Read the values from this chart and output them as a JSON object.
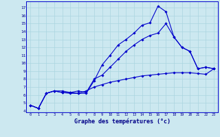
{
  "line1": {
    "x": [
      0,
      1,
      2,
      3,
      4,
      5,
      6,
      7,
      8,
      9,
      10,
      11,
      12,
      13,
      14,
      15,
      16,
      17,
      18,
      19,
      20,
      21,
      22,
      23
    ],
    "y": [
      4.7,
      4.3,
      6.2,
      6.5,
      6.3,
      6.2,
      6.2,
      6.2,
      7.8,
      9.8,
      11.0,
      12.3,
      13.0,
      13.8,
      14.8,
      15.1,
      17.2,
      16.5,
      13.3,
      12.0,
      11.5,
      9.3,
      9.5,
      9.3
    ]
  },
  "line2": {
    "x": [
      0,
      1,
      2,
      3,
      4,
      5,
      6,
      7,
      8,
      9,
      10,
      11,
      12,
      13,
      14,
      15,
      16,
      17,
      18,
      19,
      20,
      21,
      22,
      23
    ],
    "y": [
      4.7,
      4.3,
      6.2,
      6.5,
      6.5,
      6.3,
      6.5,
      6.3,
      8.0,
      8.5,
      9.5,
      10.5,
      11.5,
      12.3,
      13.0,
      13.5,
      13.8,
      15.0,
      13.3,
      12.0,
      11.5,
      9.3,
      9.5,
      9.3
    ]
  },
  "line3": {
    "x": [
      0,
      1,
      2,
      3,
      4,
      5,
      6,
      7,
      8,
      9,
      10,
      11,
      12,
      13,
      14,
      15,
      16,
      17,
      18,
      19,
      20,
      21,
      22,
      23
    ],
    "y": [
      4.7,
      4.3,
      6.2,
      6.5,
      6.3,
      6.3,
      6.2,
      6.5,
      7.0,
      7.3,
      7.6,
      7.8,
      8.0,
      8.2,
      8.4,
      8.5,
      8.6,
      8.7,
      8.8,
      8.8,
      8.8,
      8.7,
      8.6,
      9.3
    ]
  },
  "xlim": [
    -0.5,
    23.5
  ],
  "ylim": [
    3.8,
    17.8
  ],
  "yticks": [
    4,
    5,
    6,
    7,
    8,
    9,
    10,
    11,
    12,
    13,
    14,
    15,
    16,
    17
  ],
  "xticks": [
    0,
    1,
    2,
    3,
    4,
    5,
    6,
    7,
    8,
    9,
    10,
    11,
    12,
    13,
    14,
    15,
    16,
    17,
    18,
    19,
    20,
    21,
    22,
    23
  ],
  "xlabel": "Graphe des températures (°c)",
  "background_color": "#cce8f0",
  "grid_color": "#aad4e0",
  "line_color": "#0000cc",
  "label_color": "#000088",
  "marker": "D",
  "markersize": 1.8,
  "linewidth": 0.8
}
